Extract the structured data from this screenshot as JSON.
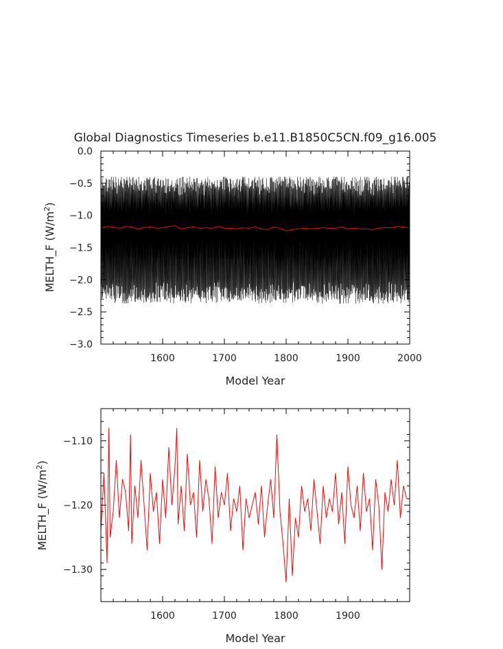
{
  "title": "Global Diagnostics Timeseries b.e11.B1850C5CN.f09_g16.005",
  "chart_data": [
    {
      "type": "line",
      "xlabel": "Model Year",
      "ylabel": "MELTH_F (W/m²)",
      "ylabel_base": "MELTH_F (W/m",
      "ylabel_sup": "2",
      "ylabel_close": ")",
      "xlim": [
        1500,
        2000
      ],
      "ylim": [
        -3.0,
        0.0
      ],
      "x_ticks": [
        1600,
        1700,
        1800,
        1900,
        2000
      ],
      "x_tick_labels": [
        "1600",
        "1700",
        "1800",
        "1900",
        "2000"
      ],
      "y_ticks": [
        0.0,
        -0.5,
        -1.0,
        -1.5,
        -2.0,
        -2.5,
        -3.0
      ],
      "y_tick_labels": [
        "0.0",
        "−0.5",
        "−1.0",
        "−1.5",
        "−2.0",
        "−2.5",
        "−3.0"
      ],
      "grid": false,
      "series": [
        {
          "color": "#000000",
          "description_values": "monthly seasonal cycle",
          "monthly_cycle": [
            -1.05,
            -0.75,
            -0.6,
            -0.55,
            -0.7,
            -1.0,
            -1.45,
            -1.85,
            -2.15,
            -2.2,
            -1.85,
            -1.45
          ],
          "years": [
            1500,
            2000
          ]
        },
        {
          "color": "#ff0000",
          "x": [
            1500,
            1510,
            1520,
            1530,
            1540,
            1550,
            1560,
            1570,
            1580,
            1590,
            1600,
            1610,
            1620,
            1630,
            1640,
            1650,
            1660,
            1670,
            1680,
            1690,
            1700,
            1710,
            1720,
            1730,
            1740,
            1750,
            1760,
            1770,
            1780,
            1790,
            1800,
            1810,
            1820,
            1830,
            1840,
            1850,
            1860,
            1870,
            1880,
            1890,
            1900,
            1910,
            1920,
            1930,
            1940,
            1950,
            1960,
            1970,
            1980,
            1990,
            2000
          ],
          "y": [
            -1.2,
            -1.17,
            -1.18,
            -1.2,
            -1.17,
            -1.18,
            -1.21,
            -1.19,
            -1.18,
            -1.2,
            -1.19,
            -1.17,
            -1.16,
            -1.21,
            -1.19,
            -1.18,
            -1.2,
            -1.19,
            -1.2,
            -1.17,
            -1.2,
            -1.2,
            -1.21,
            -1.19,
            -1.2,
            -1.18,
            -1.21,
            -1.22,
            -1.18,
            -1.2,
            -1.24,
            -1.22,
            -1.21,
            -1.2,
            -1.21,
            -1.2,
            -1.19,
            -1.2,
            -1.2,
            -1.18,
            -1.21,
            -1.2,
            -1.21,
            -1.21,
            -1.22,
            -1.2,
            -1.19,
            -1.19,
            -1.17,
            -1.18,
            -1.2
          ]
        }
      ]
    },
    {
      "type": "line",
      "xlabel": "Model Year",
      "ylabel": "MELTH_F (W/m²)",
      "ylabel_base": "MELTH_F (W/m",
      "ylabel_sup": "2",
      "ylabel_close": ")",
      "xlim": [
        1500,
        2000
      ],
      "ylim": [
        -1.35,
        -1.05
      ],
      "x_ticks": [
        1600,
        1700,
        1800,
        1900
      ],
      "x_tick_labels": [
        "1600",
        "1700",
        "1800",
        "1900"
      ],
      "y_ticks": [
        -1.1,
        -1.2,
        -1.3
      ],
      "y_tick_labels": [
        "−1.10",
        "−1.20",
        "−1.30"
      ],
      "grid": false,
      "series": [
        {
          "color": "#ff0000",
          "x": [
            1500,
            1505,
            1510,
            1513,
            1515,
            1520,
            1525,
            1530,
            1535,
            1540,
            1545,
            1548,
            1550,
            1555,
            1560,
            1565,
            1570,
            1575,
            1580,
            1585,
            1590,
            1595,
            1600,
            1605,
            1610,
            1615,
            1620,
            1623,
            1625,
            1630,
            1635,
            1640,
            1645,
            1650,
            1655,
            1660,
            1665,
            1670,
            1675,
            1680,
            1685,
            1690,
            1695,
            1700,
            1705,
            1710,
            1715,
            1720,
            1725,
            1730,
            1735,
            1740,
            1745,
            1750,
            1755,
            1760,
            1765,
            1770,
            1775,
            1780,
            1785,
            1790,
            1795,
            1800,
            1805,
            1810,
            1815,
            1820,
            1825,
            1830,
            1835,
            1840,
            1845,
            1850,
            1855,
            1860,
            1865,
            1870,
            1875,
            1880,
            1885,
            1890,
            1895,
            1900,
            1905,
            1910,
            1915,
            1920,
            1925,
            1930,
            1935,
            1940,
            1945,
            1950,
            1955,
            1960,
            1965,
            1970,
            1975,
            1980,
            1985,
            1990,
            1995
          ],
          "y": [
            -1.24,
            -1.15,
            -1.29,
            -1.08,
            -1.25,
            -1.21,
            -1.13,
            -1.22,
            -1.16,
            -1.18,
            -1.24,
            -1.09,
            -1.26,
            -1.17,
            -1.22,
            -1.13,
            -1.2,
            -1.27,
            -1.15,
            -1.21,
            -1.18,
            -1.26,
            -1.16,
            -1.22,
            -1.11,
            -1.2,
            -1.14,
            -1.08,
            -1.23,
            -1.17,
            -1.24,
            -1.12,
            -1.2,
            -1.18,
            -1.25,
            -1.13,
            -1.21,
            -1.16,
            -1.19,
            -1.26,
            -1.14,
            -1.22,
            -1.18,
            -1.2,
            -1.15,
            -1.24,
            -1.19,
            -1.21,
            -1.17,
            -1.27,
            -1.19,
            -1.22,
            -1.2,
            -1.18,
            -1.23,
            -1.17,
            -1.25,
            -1.2,
            -1.16,
            -1.22,
            -1.09,
            -1.21,
            -1.26,
            -1.32,
            -1.19,
            -1.31,
            -1.22,
            -1.25,
            -1.17,
            -1.21,
            -1.19,
            -1.24,
            -1.16,
            -1.21,
            -1.26,
            -1.17,
            -1.22,
            -1.19,
            -1.21,
            -1.15,
            -1.23,
            -1.18,
            -1.26,
            -1.14,
            -1.2,
            -1.22,
            -1.17,
            -1.24,
            -1.15,
            -1.21,
            -1.19,
            -1.27,
            -1.16,
            -1.2,
            -1.3,
            -1.18,
            -1.21,
            -1.16,
            -1.2,
            -1.13,
            -1.22,
            -1.17,
            -1.19
          ]
        }
      ]
    }
  ]
}
